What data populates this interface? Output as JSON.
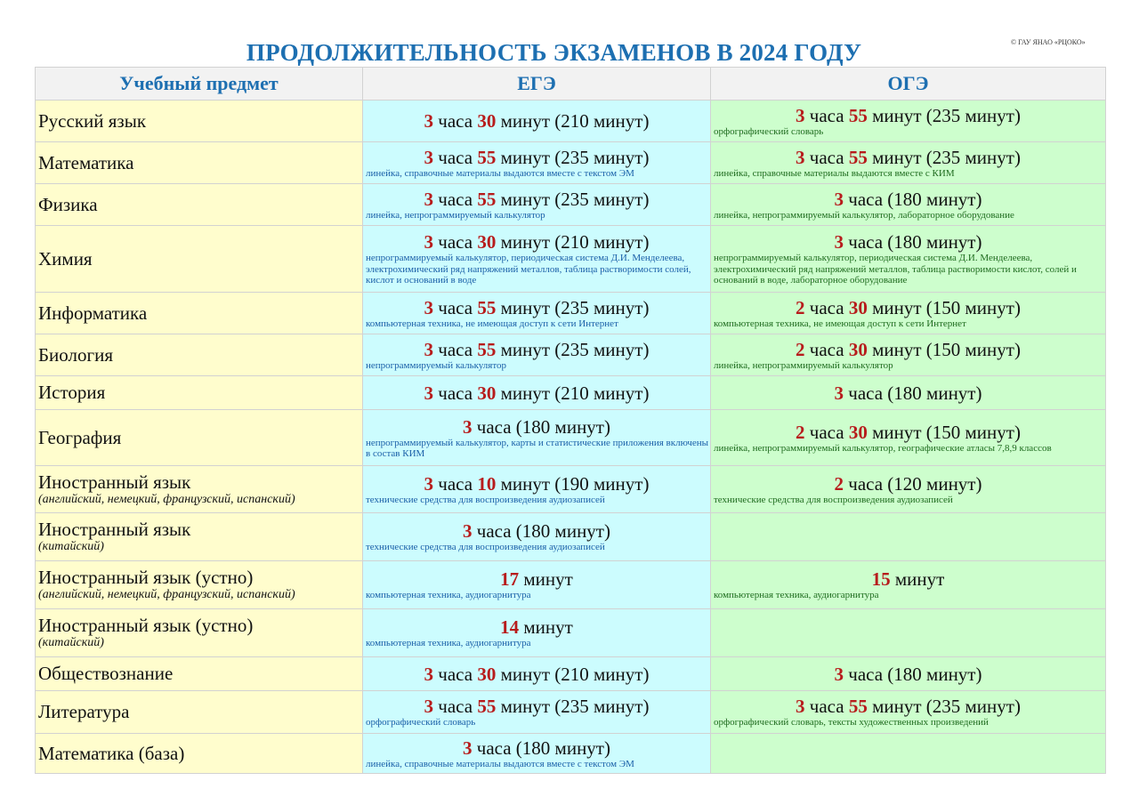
{
  "title": "ПРОДОЛЖИТЕЛЬНОСТЬ ЭКЗАМЕНОВ В 2024 ГОДУ",
  "copyright": "© ГАУ ЯНАО «РЦОКО»",
  "headers": {
    "subject": "Учебный предмет",
    "ege": "ЕГЭ",
    "oge": "ОГЭ"
  },
  "colors": {
    "title": "#1d6fb1",
    "number": "#b71c1c",
    "subject_bg": "#fffdcd",
    "ege_bg": "#ccfcfe",
    "oge_bg": "#cdfecd"
  },
  "rows": [
    {
      "subject": "Русский язык",
      "subject_sub": "",
      "ege": {
        "n1": "3",
        "t1": " часа ",
        "n2": "30",
        "t2": " минут (210 минут)",
        "note": ""
      },
      "oge": {
        "n1": "3",
        "t1": " часа ",
        "n2": "55",
        "t2": " минут (235 минут)",
        "note": "орфографический словарь"
      }
    },
    {
      "subject": "Математика",
      "subject_sub": "",
      "ege": {
        "n1": "3",
        "t1": " часа ",
        "n2": "55",
        "t2": " минут (235 минут)",
        "note": "линейка, справочные материалы выдаются вместе с текстом ЭМ"
      },
      "oge": {
        "n1": "3",
        "t1": " часа ",
        "n2": "55",
        "t2": " минут (235 минут)",
        "note": "линейка, справочные материалы выдаются вместе с КИМ"
      }
    },
    {
      "subject": "Физика",
      "subject_sub": "",
      "ege": {
        "n1": "3",
        "t1": " часа ",
        "n2": "55",
        "t2": " минут (235 минут)",
        "note": "линейка, непрограммируемый калькулятор"
      },
      "oge": {
        "n1": "3",
        "t1": " часа (180 минут)",
        "n2": "",
        "t2": "",
        "note": "линейка, непрограммируемый калькулятор, лабораторное оборудование"
      }
    },
    {
      "subject": "Химия",
      "subject_sub": "",
      "ege": {
        "n1": "3",
        "t1": " часа ",
        "n2": "30",
        "t2": " минут (210 минут)",
        "note": "непрограммируемый калькулятор, периодическая система Д.И. Менделеева, электрохимический ряд напряжений металлов, таблица растворимости солей, кислот и оснований в воде"
      },
      "oge": {
        "n1": "3",
        "t1": " часа (180 минут)",
        "n2": "",
        "t2": "",
        "note": "непрограммируемый калькулятор, периодическая система Д.И. Менделеева, электрохимический ряд напряжений металлов, таблица растворимости кислот, солей и оснований в воде, лабораторное оборудование"
      }
    },
    {
      "subject": "Информатика",
      "subject_sub": "",
      "ege": {
        "n1": "3",
        "t1": " часа ",
        "n2": "55",
        "t2": " минут (235 минут)",
        "note": "компьютерная техника, не имеющая доступ к сети Интернет"
      },
      "oge": {
        "n1": "2",
        "t1": " часа ",
        "n2": "30",
        "t2": " минут (150 минут)",
        "note": "компьютерная техника, не имеющая доступ к сети Интернет"
      }
    },
    {
      "subject": "Биология",
      "subject_sub": "",
      "ege": {
        "n1": "3",
        "t1": " часа ",
        "n2": "55",
        "t2": " минут (235 минут)",
        "note": "непрограммируемый калькулятор"
      },
      "oge": {
        "n1": "2",
        "t1": " часа ",
        "n2": "30",
        "t2": " минут (150 минут)",
        "note": "линейка, непрограммируемый калькулятор"
      }
    },
    {
      "subject": "История",
      "subject_sub": "",
      "ege": {
        "n1": "3",
        "t1": " часа ",
        "n2": "30",
        "t2": " минут (210 минут)",
        "note": ""
      },
      "oge": {
        "n1": "3",
        "t1": " часа (180 минут)",
        "n2": "",
        "t2": "",
        "note": ""
      }
    },
    {
      "subject": "География",
      "subject_sub": "",
      "ege": {
        "n1": "3",
        "t1": " часа (180 минут)",
        "n2": "",
        "t2": "",
        "note": "непрограммируемый калькулятор, карты и статистические приложения включены в состав КИМ"
      },
      "oge": {
        "n1": "2",
        "t1": " часа ",
        "n2": "30",
        "t2": " минут (150 минут)",
        "note": "линейка, непрограммируемый калькулятор, географические атласы 7,8,9 классов"
      }
    },
    {
      "subject": "Иностранный язык",
      "subject_sub": "(английский, немецкий, французский, испанский)",
      "ege": {
        "n1": "3",
        "t1": " часа ",
        "n2": "10",
        "t2": " минут (190 минут)",
        "note": "технические средства для воспроизведения аудиозаписей"
      },
      "oge": {
        "n1": "2",
        "t1": " часа (120 минут)",
        "n2": "",
        "t2": "",
        "note": "технические средства для воспроизведения аудиозаписей"
      }
    },
    {
      "subject": "Иностранный язык",
      "subject_sub": "(китайский)",
      "ege": {
        "n1": "3",
        "t1": " часа (180 минут)",
        "n2": "",
        "t2": "",
        "note": "технические средства для воспроизведения аудиозаписей"
      },
      "oge": {
        "n1": "",
        "t1": "",
        "n2": "",
        "t2": "",
        "note": ""
      }
    },
    {
      "subject": "Иностранный язык (устно)",
      "subject_sub": "(английский, немецкий, французский, испанский)",
      "ege": {
        "n1": "17",
        "t1": " минут",
        "n2": "",
        "t2": "",
        "note": "компьютерная техника, аудиогарнитура"
      },
      "oge": {
        "n1": "15",
        "t1": " минут",
        "n2": "",
        "t2": "",
        "note": "компьютерная техника, аудиогарнитура"
      }
    },
    {
      "subject": "Иностранный язык (устно)",
      "subject_sub": "(китайский)",
      "ege": {
        "n1": "14",
        "t1": " минут",
        "n2": "",
        "t2": "",
        "note": "компьютерная техника, аудиогарнитура"
      },
      "oge": {
        "n1": "",
        "t1": "",
        "n2": "",
        "t2": "",
        "note": ""
      }
    },
    {
      "subject": "Обществознание",
      "subject_sub": "",
      "ege": {
        "n1": "3",
        "t1": " часа  ",
        "n2": "30",
        "t2": " минут (210 минут)",
        "note": ""
      },
      "oge": {
        "n1": "3",
        "t1": " часа (180 минут)",
        "n2": "",
        "t2": "",
        "note": ""
      }
    },
    {
      "subject": "Литература",
      "subject_sub": "",
      "ege": {
        "n1": "3",
        "t1": " часа ",
        "n2": "55",
        "t2": " минут (235 минут)",
        "note": "орфографический словарь"
      },
      "oge": {
        "n1": "3",
        "t1": " часа ",
        "n2": "55",
        "t2": " минут (235 минут)",
        "note": "орфографический словарь, тексты художественных произведений"
      }
    },
    {
      "subject": "Математика (база)",
      "subject_sub": "",
      "ege": {
        "n1": "3",
        "t1": " часа (180 минут)",
        "n2": "",
        "t2": "",
        "note": "линейка, справочные материалы выдаются вместе с текстом ЭМ"
      },
      "oge": {
        "n1": "",
        "t1": "",
        "n2": "",
        "t2": "",
        "note": ""
      }
    }
  ]
}
